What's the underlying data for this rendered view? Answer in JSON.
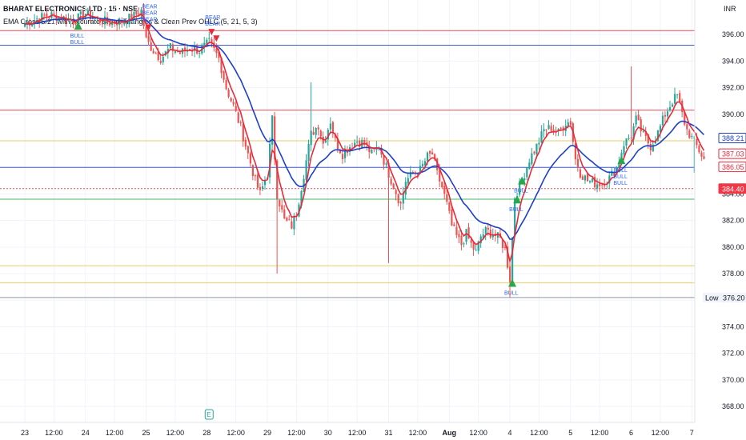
{
  "header": {
    "title": "BHARAT ELECTRONICS LTD · 15 · NSE",
    "indicator": "EMA Cross 5/21 with Accurate Break Triangles & Clean Prev OHLC (5, 21, 5, 3)"
  },
  "currency": "INR",
  "colors": {
    "up": "#26a69a",
    "down": "#ef5350",
    "ema_fast": "#e8293a",
    "ema_slow": "#1e40c8",
    "bull_marker": "#27a84a",
    "bear_marker": "#e8293a",
    "grid": "#f0f3fa"
  },
  "chart_data": {
    "type": "line",
    "title": "",
    "xlabel": "",
    "ylabel": "",
    "ylim": [
      366.8,
      398.6
    ],
    "y_ticks": [
      368,
      370,
      372,
      374,
      376,
      378,
      380,
      382,
      384,
      386,
      388,
      390,
      392,
      394,
      396
    ],
    "y_tick_labels": [
      "368.00",
      "370.00",
      "372.00",
      "374.00",
      "376.00",
      "378.00",
      "380.00",
      "382.00",
      "384.00",
      "386.00",
      "388.00",
      "390.00",
      "392.00",
      "394.00",
      "396.00"
    ],
    "x_ticks": [
      {
        "label": "23",
        "i": 0
      },
      {
        "label": "12:00",
        "i": 12
      },
      {
        "label": "24",
        "i": 25
      },
      {
        "label": "12:00",
        "i": 37
      },
      {
        "label": "25",
        "i": 50
      },
      {
        "label": "12:00",
        "i": 62
      },
      {
        "label": "28",
        "i": 75
      },
      {
        "label": "12:00",
        "i": 87
      },
      {
        "label": "29",
        "i": 100
      },
      {
        "label": "12:00",
        "i": 112
      },
      {
        "label": "30",
        "i": 125
      },
      {
        "label": "12:00",
        "i": 137
      },
      {
        "label": "31",
        "i": 150
      },
      {
        "label": "12:00",
        "i": 162
      },
      {
        "label": "Aug",
        "i": 175
      },
      {
        "label": "12:00",
        "i": 187
      },
      {
        "label": "4",
        "i": 200
      },
      {
        "label": "12:00",
        "i": 212
      },
      {
        "label": "5",
        "i": 225
      },
      {
        "label": "12:00",
        "i": 237
      },
      {
        "label": "6",
        "i": 250
      },
      {
        "label": "12:00",
        "i": 262
      },
      {
        "label": "7",
        "i": 275
      }
    ],
    "close_anchors": [
      [
        0,
        396.8
      ],
      [
        5,
        397.2
      ],
      [
        10,
        397.5
      ],
      [
        15,
        397.3
      ],
      [
        20,
        397.0
      ],
      [
        25,
        397.6
      ],
      [
        30,
        397.1
      ],
      [
        35,
        396.9
      ],
      [
        40,
        397.0
      ],
      [
        45,
        397.4
      ],
      [
        48,
        397.8
      ],
      [
        50,
        395.6
      ],
      [
        53,
        394.8
      ],
      [
        56,
        394.2
      ],
      [
        60,
        395.0
      ],
      [
        64,
        394.6
      ],
      [
        68,
        395.0
      ],
      [
        72,
        394.8
      ],
      [
        76,
        395.4
      ],
      [
        78,
        394.8
      ],
      [
        80,
        394.2
      ],
      [
        83,
        392.0
      ],
      [
        86,
        390.6
      ],
      [
        89,
        389.0
      ],
      [
        92,
        387.0
      ],
      [
        95,
        385.0
      ],
      [
        97,
        384.0
      ],
      [
        100,
        385.5
      ],
      [
        102,
        389.6
      ],
      [
        104,
        384.0
      ],
      [
        107,
        382.0
      ],
      [
        110,
        381.6
      ],
      [
        112,
        382.6
      ],
      [
        115,
        385.5
      ],
      [
        118,
        388.5
      ],
      [
        121,
        389.2
      ],
      [
        123,
        387.8
      ],
      [
        126,
        389.5
      ],
      [
        128,
        388.0
      ],
      [
        131,
        387.0
      ],
      [
        134,
        387.6
      ],
      [
        137,
        388.0
      ],
      [
        140,
        387.8
      ],
      [
        143,
        387.0
      ],
      [
        146,
        387.6
      ],
      [
        149,
        386.0
      ],
      [
        152,
        384.6
      ],
      [
        155,
        383.2
      ],
      [
        157,
        385.0
      ],
      [
        160,
        385.5
      ],
      [
        163,
        385.8
      ],
      [
        166,
        386.8
      ],
      [
        168,
        387.0
      ],
      [
        170,
        385.5
      ],
      [
        172,
        384.5
      ],
      [
        174,
        383.2
      ],
      [
        176,
        381.6
      ],
      [
        178,
        380.8
      ],
      [
        180,
        380.2
      ],
      [
        182,
        381.0
      ],
      [
        184,
        380.2
      ],
      [
        186,
        379.6
      ],
      [
        188,
        380.8
      ],
      [
        190,
        381.2
      ],
      [
        193,
        381.0
      ],
      [
        196,
        380.6
      ],
      [
        198,
        379.8
      ],
      [
        200,
        377.6
      ],
      [
        202,
        383.8
      ],
      [
        205,
        385.0
      ],
      [
        208,
        386.6
      ],
      [
        211,
        387.6
      ],
      [
        214,
        388.8
      ],
      [
        217,
        389.0
      ],
      [
        220,
        388.6
      ],
      [
        223,
        389.4
      ],
      [
        225,
        389.4
      ],
      [
        227,
        386.6
      ],
      [
        229,
        385.6
      ],
      [
        232,
        385.0
      ],
      [
        235,
        384.8
      ],
      [
        238,
        384.8
      ],
      [
        241,
        385.2
      ],
      [
        244,
        386.0
      ],
      [
        247,
        387.8
      ],
      [
        250,
        388.4
      ],
      [
        252,
        389.6
      ],
      [
        255,
        388.4
      ],
      [
        258,
        387.6
      ],
      [
        261,
        388.6
      ],
      [
        264,
        390.0
      ],
      [
        267,
        391.0
      ],
      [
        269,
        391.4
      ],
      [
        271,
        390.0
      ],
      [
        273,
        388.8
      ],
      [
        275,
        388.2
      ],
      [
        277,
        387.6
      ],
      [
        280,
        386.6
      ]
    ],
    "volatility": 0.55,
    "anchors": {
      "n_bars": 281,
      "ema_fast_period": 5,
      "ema_slow_period": 21
    },
    "series": [
      {
        "kind": "candles",
        "values": []
      },
      {
        "kind": "ema5",
        "values": []
      },
      {
        "kind": "ema21",
        "values": []
      }
    ],
    "levels": [
      {
        "value": 396.3,
        "color": "#e8293a",
        "style": "solid",
        "label": ""
      },
      {
        "value": 395.2,
        "color": "#1e40c8",
        "style": "solid",
        "label": ""
      },
      {
        "value": 390.3,
        "color": "#e8293a",
        "style": "solid",
        "label": ""
      },
      {
        "value": 388.0,
        "color": "#e6c64c",
        "style": "solid",
        "label": ""
      },
      {
        "value": 386.0,
        "color": "#1e40c8",
        "style": "solid",
        "label": ""
      },
      {
        "value": 384.4,
        "color": "#e8293a",
        "style": "dotted",
        "label": ""
      },
      {
        "value": 383.6,
        "color": "#27a84a",
        "style": "solid",
        "label": ""
      },
      {
        "value": 378.6,
        "color": "#e6c64c",
        "style": "solid",
        "label": ""
      },
      {
        "value": 377.3,
        "color": "#e6c64c",
        "style": "solid",
        "label": ""
      },
      {
        "value": 376.2,
        "color": "#7f8591",
        "style": "solid",
        "label": ""
      }
    ],
    "price_tags": [
      {
        "value": 388.21,
        "text": "388.21",
        "bg": "#ffffff",
        "fg": "#1e40c8",
        "border": "#1e40c8"
      },
      {
        "value": 387.03,
        "text": "387.03",
        "bg": "#ffffff",
        "fg": "#e8293a",
        "border": "#e8293a"
      },
      {
        "value": 386.05,
        "text": "386.05",
        "bg": "#ffffff",
        "fg": "#e8293a",
        "border": "#e8293a"
      },
      {
        "value": 384.4,
        "text": "384.40",
        "bg": "#f23645",
        "fg": "#ffffff",
        "border": "#f23645"
      }
    ],
    "low_marker": {
      "value": 376.2,
      "label": "Low",
      "text": "376.20"
    },
    "signals": [
      {
        "i": 22,
        "type": "bull",
        "texts": [
          "BULL",
          "BULL"
        ]
      },
      {
        "i": 51,
        "type": "bear",
        "texts": [
          "BEAR",
          "BEAR",
          "BEAR"
        ]
      },
      {
        "i": 77,
        "type": "bear",
        "texts": [
          "BEAR",
          "BEAR"
        ]
      },
      {
        "i": 79,
        "type": "bear",
        "texts": []
      },
      {
        "i": 201,
        "type": "bull",
        "texts": [
          "BULL"
        ]
      },
      {
        "i": 203,
        "type": "bull",
        "texts": [
          "BULL"
        ]
      },
      {
        "i": 205,
        "type": "bull",
        "texts": [
          "BULL"
        ]
      },
      {
        "i": 246,
        "type": "bull",
        "texts": [
          "BULL",
          "BULL",
          "BULL"
        ]
      }
    ],
    "events": [
      {
        "i": 76,
        "label": "E"
      }
    ]
  }
}
